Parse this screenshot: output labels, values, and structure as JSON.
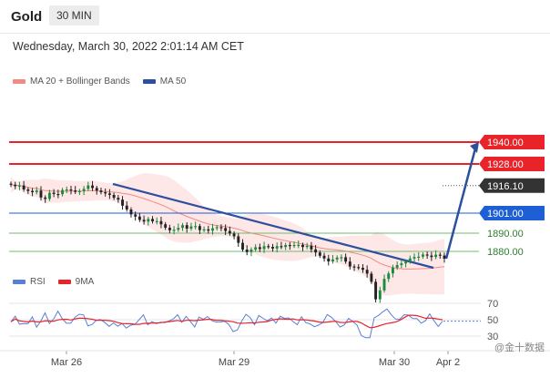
{
  "header": {
    "symbol": "Gold",
    "timeframe": "30 MIN"
  },
  "timestamp": "Wednesday, March 30, 2022 2:01:14 AM CET",
  "watermark": "@金十数据",
  "colors": {
    "ma20": "#f28b82",
    "band": "#fde3e3",
    "ma50": "#2c4f9e",
    "candle_up": "#1a8a3c",
    "candle_down": "#222222",
    "resistance": "#e8232a",
    "support": "#1e5fd6",
    "support2": "#6cbf6c",
    "last_price": "#333333",
    "rsi": "#5b7fd6",
    "rsi_ma": "#e8232a"
  },
  "chart_data": [
    {
      "type": "line",
      "title": "",
      "legend": [
        {
          "name": "MA 20 + Bollinger Bands",
          "color": "#f28b82"
        },
        {
          "name": "MA 50",
          "color": "#2c4f9e"
        }
      ],
      "ylim": [
        1870,
        1960
      ],
      "x_ticks": [
        "Mar 26",
        "Mar 29",
        "Mar 30",
        "Apr 2"
      ],
      "levels": [
        {
          "value": 1940.0,
          "label": "1940.00",
          "kind": "resistance"
        },
        {
          "value": 1928.0,
          "label": "1928.00",
          "kind": "resistance"
        },
        {
          "value": 1916.1,
          "label": "1916.10",
          "kind": "last"
        },
        {
          "value": 1901.0,
          "label": "1901.00",
          "kind": "support"
        },
        {
          "value": 1890.0,
          "label": "1890.00",
          "kind": "support2"
        },
        {
          "value": 1880.0,
          "label": "1880.00",
          "kind": "support2"
        }
      ],
      "price_series": [
        1916.6,
        1915.8,
        1916.2,
        1914.0,
        1913.2,
        1912.5,
        1913.4,
        1909.6,
        1908.8,
        1912.2,
        1911.5,
        1911.4,
        1913.7,
        1914.0,
        1913.5,
        1912.7,
        1913.1,
        1914.3,
        1916.2,
        1914.8,
        1913.4,
        1912.5,
        1911.8,
        1911.0,
        1909.4,
        1908.4,
        1905.1,
        1903.0,
        1900.3,
        1899.1,
        1897.3,
        1896.4,
        1897.8,
        1896.5,
        1896.6,
        1894.9,
        1893.0,
        1891.6,
        1891.9,
        1892.9,
        1894.4,
        1892.5,
        1893.7,
        1893.9,
        1891.7,
        1892.1,
        1891.4,
        1892.7,
        1893.3,
        1892.8,
        1891.2,
        1889.8,
        1888.3,
        1884.7,
        1881.0,
        1879.6,
        1881.0,
        1882.3,
        1881.3,
        1882.9,
        1882.5,
        1881.6,
        1882.9,
        1882.4,
        1883.5,
        1883.1,
        1883.5,
        1883.6,
        1882.4,
        1883.1,
        1881.1,
        1879.4,
        1877.6,
        1876.1,
        1874.5,
        1875.6,
        1876.6,
        1876.8,
        1874.4,
        1871.7,
        1871.4,
        1871.0,
        1869.9,
        1867.8,
        1863.3,
        1853.7,
        1858.6,
        1864.9,
        1867.9,
        1871.1,
        1872.5,
        1873.4,
        1874.4,
        1876.1,
        1876.9,
        1877.1,
        1878.3,
        1877.7,
        1876.9,
        1878.2,
        1877.7,
        1876.0
      ],
      "ma50_line": {
        "start": 1917.0,
        "end": 1871.0
      },
      "projection": {
        "from": 1876.0,
        "to": 1940.0
      }
    },
    {
      "type": "line",
      "title": "",
      "legend": [
        {
          "name": "RSI",
          "color": "#5b7fd6"
        },
        {
          "name": "9MA",
          "color": "#e8232a"
        }
      ],
      "ylim": [
        25,
        75
      ],
      "y_ticks": [
        "70",
        "50",
        "30"
      ]
    }
  ]
}
